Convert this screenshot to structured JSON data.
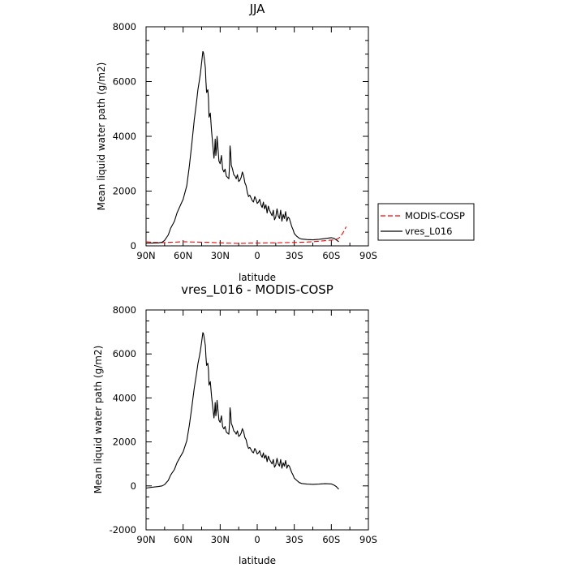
{
  "chart_data": [
    {
      "type": "line",
      "title": "JJA",
      "xlabel": "latitude",
      "ylabel": "Mean liquid water path (g/m2)",
      "xlim": [
        90,
        -90
      ],
      "ylim": [
        0,
        8000
      ],
      "x_ticks": [
        {
          "value": 90,
          "label": "90N"
        },
        {
          "value": 60,
          "label": "60N"
        },
        {
          "value": 30,
          "label": "30N"
        },
        {
          "value": 0,
          "label": "0"
        },
        {
          "value": -30,
          "label": "30S"
        },
        {
          "value": -60,
          "label": "60S"
        },
        {
          "value": -90,
          "label": "90S"
        }
      ],
      "y_ticks": [
        0,
        2000,
        4000,
        6000,
        8000
      ],
      "grid": false,
      "legend": {
        "placement": "right",
        "entries": [
          "MODIS-COSP",
          "vres_L016"
        ]
      },
      "series": [
        {
          "name": "MODIS-COSP",
          "color": "#ff0000",
          "dash": "dashed",
          "x": [
            90,
            85,
            80,
            75,
            70,
            65,
            60,
            55,
            50,
            45,
            40,
            35,
            30,
            25,
            20,
            15,
            10,
            5,
            0,
            -5,
            -10,
            -15,
            -20,
            -25,
            -30,
            -35,
            -40,
            -45,
            -50,
            -55,
            -60,
            -62,
            -64,
            -66,
            -68,
            -70,
            -72
          ],
          "y": [
            150,
            130,
            120,
            120,
            130,
            140,
            150,
            145,
            140,
            135,
            130,
            120,
            110,
            100,
            95,
            90,
            95,
            100,
            100,
            105,
            110,
            110,
            115,
            120,
            125,
            130,
            140,
            150,
            170,
            190,
            210,
            220,
            240,
            280,
            380,
            520,
            700
          ]
        },
        {
          "name": "vres_L016",
          "color": "#000000",
          "dash": "solid",
          "x": [
            90,
            85,
            80,
            77,
            75,
            72,
            70,
            67,
            65,
            62,
            60,
            57,
            55,
            53,
            51,
            49,
            48,
            47,
            46,
            45,
            44,
            43.5,
            43,
            42,
            41.5,
            41,
            40,
            39.5,
            39,
            38,
            37,
            36,
            35,
            34.5,
            34,
            33.5,
            33,
            32.5,
            32,
            31,
            30,
            29,
            28,
            27,
            26,
            25,
            24,
            23,
            22.5,
            22,
            21.5,
            21,
            20,
            19,
            18,
            17,
            16,
            15,
            14,
            13,
            12,
            11,
            10,
            9,
            8,
            7,
            6,
            5,
            4,
            3,
            2,
            1,
            0,
            -1,
            -2,
            -3,
            -4,
            -5,
            -6,
            -7,
            -8,
            -9,
            -10,
            -11,
            -12,
            -13,
            -14,
            -15,
            -16,
            -17,
            -18,
            -19,
            -20,
            -21,
            -22,
            -23,
            -24,
            -25,
            -26,
            -27,
            -28,
            -29,
            -30,
            -32,
            -34,
            -36,
            -40,
            -45,
            -50,
            -55,
            -60,
            -62,
            -64,
            -66
          ],
          "y": [
            100,
            100,
            110,
            130,
            200,
            400,
            650,
            900,
            1200,
            1500,
            1700,
            2200,
            2900,
            3700,
            4600,
            5300,
            5700,
            6000,
            6300,
            6700,
            7100,
            7050,
            6900,
            6500,
            6000,
            5600,
            5700,
            5400,
            4700,
            4850,
            4200,
            3700,
            3200,
            3500,
            3900,
            3300,
            3550,
            4000,
            3700,
            3100,
            3000,
            3300,
            2800,
            2700,
            2800,
            2550,
            2500,
            2450,
            2900,
            3650,
            3400,
            2950,
            2800,
            2600,
            2550,
            2450,
            2600,
            2350,
            2400,
            2500,
            2700,
            2550,
            2300,
            2200,
            1950,
            1800,
            1850,
            1750,
            1650,
            1600,
            1800,
            1700,
            1550,
            1600,
            1700,
            1500,
            1400,
            1600,
            1350,
            1500,
            1200,
            1450,
            1300,
            1200,
            1100,
            1300,
            950,
            1050,
            1350,
            1100,
            1000,
            1300,
            900,
            1150,
            1000,
            1250,
            900,
            1050,
            1000,
            850,
            700,
            600,
            450,
            350,
            280,
            250,
            230,
            220,
            240,
            270,
            300,
            280,
            220,
            150
          ]
        }
      ]
    },
    {
      "type": "line",
      "title": "vres_L016 - MODIS-COSP",
      "xlabel": "latitude",
      "ylabel": "Mean liquid water path (g/m2)",
      "xlim": [
        90,
        -90
      ],
      "ylim": [
        -2000,
        8000
      ],
      "x_ticks": [
        {
          "value": 90,
          "label": "90N"
        },
        {
          "value": 60,
          "label": "60N"
        },
        {
          "value": 30,
          "label": "30N"
        },
        {
          "value": 0,
          "label": "0"
        },
        {
          "value": -30,
          "label": "30S"
        },
        {
          "value": -60,
          "label": "60S"
        },
        {
          "value": -90,
          "label": "90S"
        }
      ],
      "y_ticks": [
        -2000,
        0,
        2000,
        4000,
        6000,
        8000
      ],
      "grid": false,
      "series": [
        {
          "color": "#000000",
          "dash": "solid",
          "x": [
            90,
            85,
            80,
            77,
            75,
            72,
            70,
            67,
            65,
            62,
            60,
            57,
            55,
            53,
            51,
            49,
            48,
            47,
            46,
            45,
            44,
            43.5,
            43,
            42,
            41.5,
            41,
            40,
            39.5,
            39,
            38,
            37,
            36,
            35,
            34.5,
            34,
            33.5,
            33,
            32.5,
            32,
            31,
            30,
            29,
            28,
            27,
            26,
            25,
            24,
            23,
            22.5,
            22,
            21.5,
            21,
            20,
            19,
            18,
            17,
            16,
            15,
            14,
            13,
            12,
            11,
            10,
            9,
            8,
            7,
            6,
            5,
            4,
            3,
            2,
            1,
            0,
            -1,
            -2,
            -3,
            -4,
            -5,
            -6,
            -7,
            -8,
            -9,
            -10,
            -11,
            -12,
            -13,
            -14,
            -15,
            -16,
            -17,
            -18,
            -19,
            -20,
            -21,
            -22,
            -23,
            -24,
            -25,
            -26,
            -27,
            -28,
            -29,
            -30,
            -32,
            -34,
            -36,
            -40,
            -45,
            -50,
            -55,
            -60,
            -62,
            -64,
            -66
          ],
          "y": [
            -100,
            -60,
            -30,
            0,
            60,
            250,
            500,
            750,
            1050,
            1350,
            1550,
            2050,
            2750,
            3550,
            4450,
            5150,
            5550,
            5850,
            6150,
            6550,
            6970,
            6920,
            6770,
            6380,
            5880,
            5480,
            5580,
            5280,
            4580,
            4740,
            4080,
            3580,
            3090,
            3390,
            3790,
            3190,
            3440,
            3890,
            3590,
            2990,
            2890,
            3190,
            2690,
            2590,
            2700,
            2450,
            2400,
            2350,
            2800,
            3550,
            3300,
            2850,
            2700,
            2500,
            2450,
            2350,
            2500,
            2250,
            2300,
            2400,
            2600,
            2450,
            2200,
            2100,
            1850,
            1700,
            1750,
            1650,
            1550,
            1500,
            1700,
            1600,
            1450,
            1500,
            1600,
            1400,
            1300,
            1500,
            1250,
            1400,
            1100,
            1350,
            1200,
            1100,
            1000,
            1200,
            850,
            950,
            1250,
            1000,
            900,
            1200,
            800,
            1050,
            900,
            1150,
            800,
            950,
            900,
            750,
            600,
            500,
            350,
            250,
            150,
            110,
            80,
            70,
            80,
            100,
            90,
            40,
            -30,
            -150
          ]
        }
      ]
    }
  ]
}
